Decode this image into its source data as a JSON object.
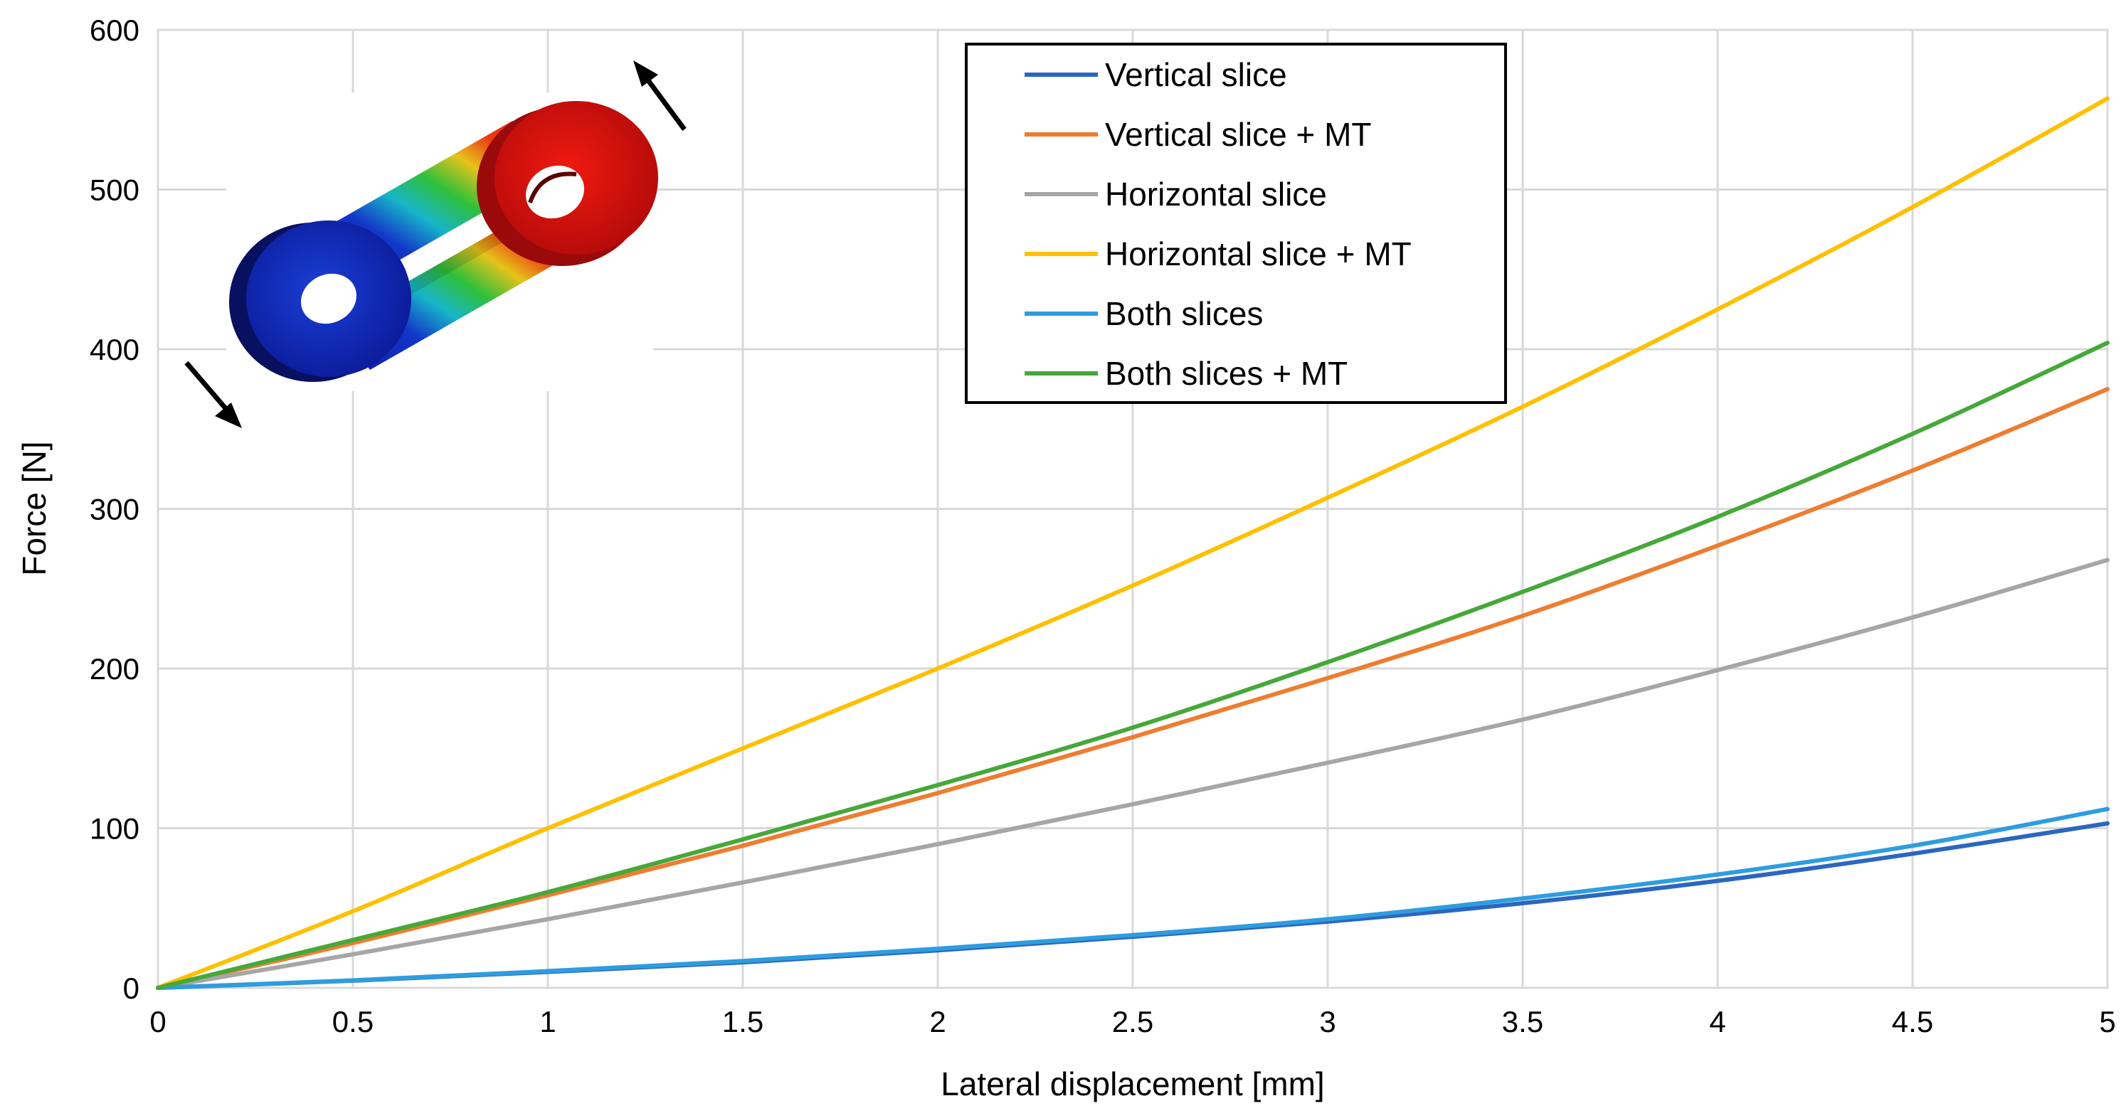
{
  "chart_data": {
    "type": "line",
    "title": "",
    "xlabel": "Lateral displacement [mm]",
    "ylabel": "Force [N]",
    "xlim": [
      0,
      5
    ],
    "ylim": [
      0,
      600
    ],
    "grid": true,
    "legend_position": "top-center",
    "x_ticks": [
      "0",
      "0.5",
      "1",
      "1.5",
      "2",
      "2.5",
      "3",
      "3.5",
      "4",
      "4.5",
      "5"
    ],
    "y_ticks": [
      "0",
      "100",
      "200",
      "300",
      "400",
      "500",
      "600"
    ],
    "x": [
      0,
      0.5,
      1,
      1.5,
      2,
      2.5,
      3,
      3.5,
      4,
      4.5,
      5
    ],
    "series": [
      {
        "name": "Vertical slice",
        "color": "#2b66c0",
        "values": [
          0,
          4.5,
          10,
          16,
          23.5,
          32,
          41.5,
          53,
          67,
          84,
          103
        ]
      },
      {
        "name": "Vertical slice + MT",
        "color": "#ee7d31",
        "values": [
          0,
          28,
          58,
          89,
          122,
          157,
          194,
          233,
          277,
          324,
          375
        ]
      },
      {
        "name": "Horizontal slice",
        "color": "#a6a6a6",
        "values": [
          0,
          21,
          43,
          66,
          90,
          115,
          141,
          168,
          199,
          232,
          268
        ]
      },
      {
        "name": "Horizontal slice + MT",
        "color": "#ffc000",
        "values": [
          0,
          48,
          100,
          150,
          200,
          252,
          307,
          364,
          425,
          489,
          557
        ]
      },
      {
        "name": "Both slices",
        "color": "#2e9de0",
        "values": [
          0,
          4.7,
          10.5,
          16.8,
          24.5,
          33,
          43,
          56,
          71,
          89,
          112
        ]
      },
      {
        "name": "Both slices + MT",
        "color": "#46a83a",
        "values": [
          0,
          30,
          60,
          93,
          127,
          163,
          204,
          248,
          295,
          347,
          404
        ]
      }
    ],
    "inset": {
      "description_icon": "rotated-link-deformation-icon"
    }
  }
}
